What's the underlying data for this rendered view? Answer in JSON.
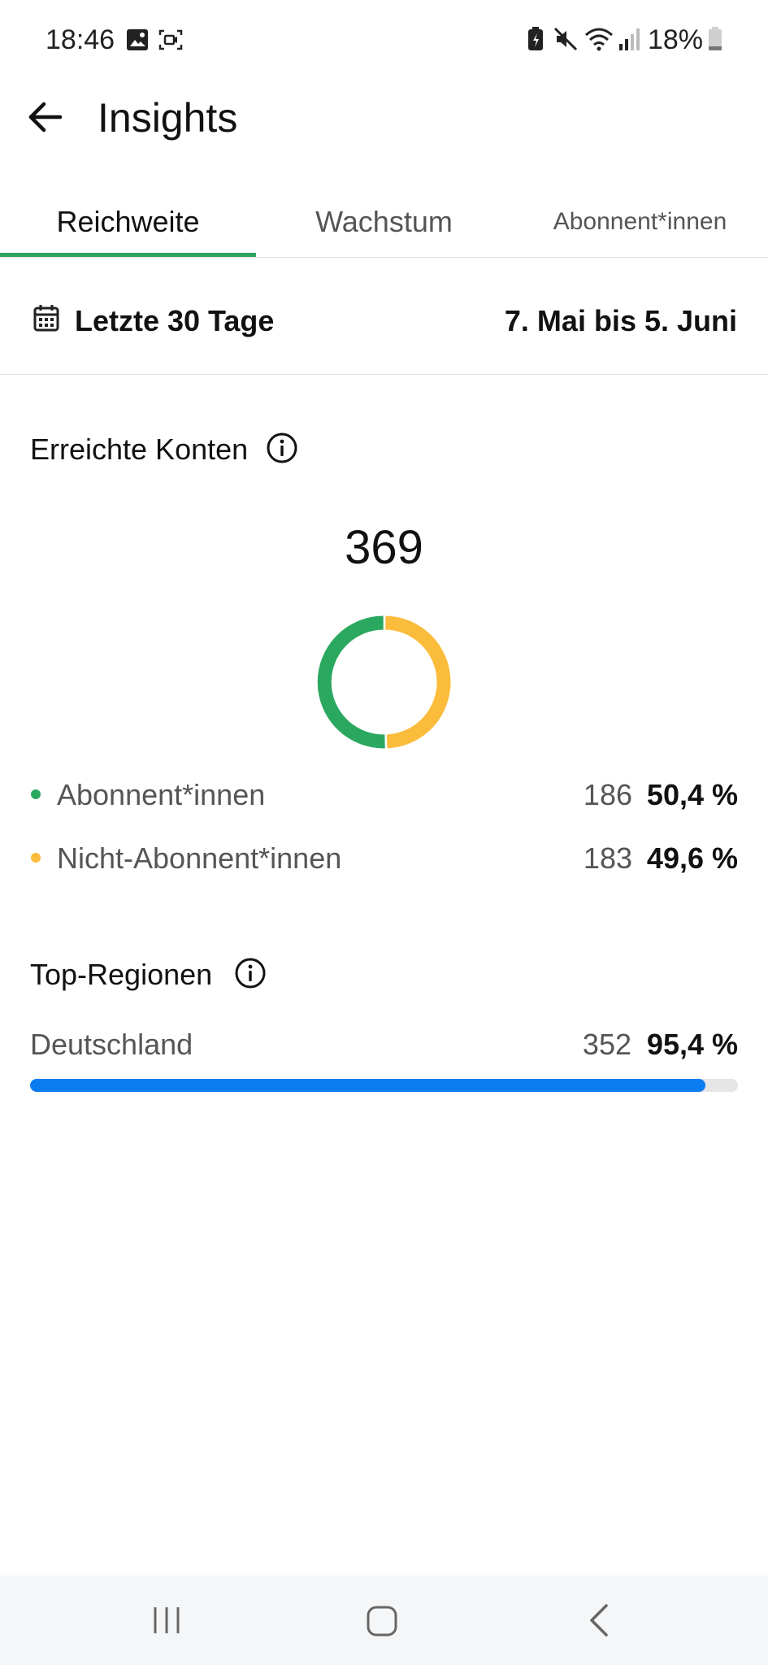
{
  "status_bar": {
    "time": "18:46",
    "battery": "18%",
    "icons": [
      "image-icon",
      "screen-record-icon",
      "battery-saver-icon",
      "mute-icon",
      "wifi-icon",
      "signal-icon",
      "battery-icon"
    ]
  },
  "header": {
    "title": "Insights",
    "back_icon": "arrow-left-icon"
  },
  "tabs": [
    {
      "label": "Reichweite",
      "active": true
    },
    {
      "label": "Wachstum",
      "active": false
    },
    {
      "label": "Abonnent*innen",
      "active": false
    }
  ],
  "date_filter": {
    "label": "Letzte 30 Tage",
    "range": "7. Mai bis 5. Juni",
    "icon": "calendar-icon"
  },
  "reached_accounts": {
    "title": "Erreichte Konten",
    "total": "369",
    "legend": [
      {
        "label": "Abonnent*innen",
        "count": "186",
        "percent": "50,4 %",
        "color": "#2aa85f"
      },
      {
        "label": "Nicht-Abonnent*innen",
        "count": "183",
        "percent": "49,6 %",
        "color": "#fbbc3c"
      }
    ]
  },
  "chart_data": {
    "type": "pie",
    "categories": [
      "Abonnent*innen",
      "Nicht-Abonnent*innen"
    ],
    "values": [
      186,
      183
    ],
    "colors": [
      "#2aa85f",
      "#fbbc3c"
    ]
  },
  "top_regions": {
    "title": "Top-Regionen",
    "items": [
      {
        "name": "Deutschland",
        "count": "352",
        "percent": "95,4 %",
        "fraction": 0.954,
        "color": "#0a7cf0"
      }
    ]
  },
  "nav_bar": {
    "icons": [
      "recent-apps-icon",
      "home-icon",
      "back-icon"
    ]
  }
}
